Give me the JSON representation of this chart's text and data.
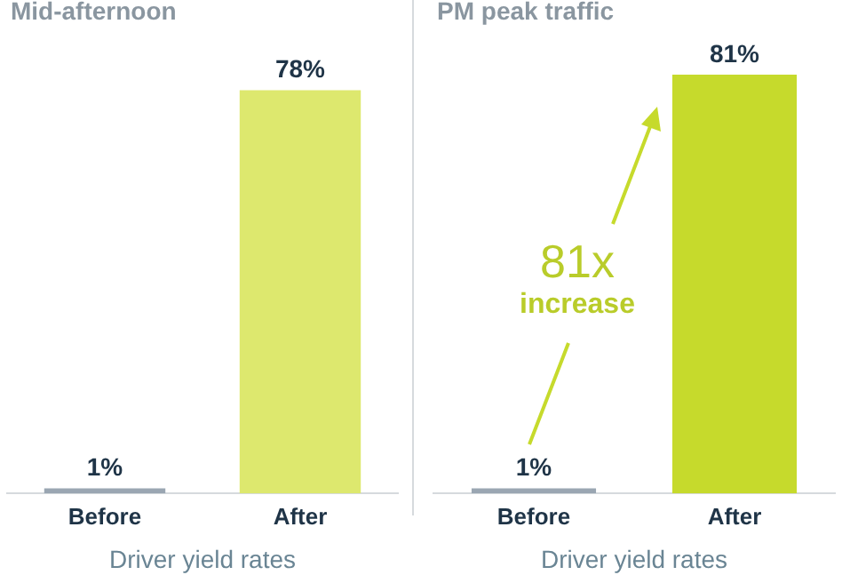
{
  "chart_data": [
    {
      "type": "bar",
      "title": "Mid-afternoon",
      "xlabel": "Driver yield rates",
      "categories": [
        "Before",
        "After"
      ],
      "values": [
        1,
        78
      ],
      "colors": [
        "#9aa6b2",
        "#dde86e"
      ],
      "value_labels": [
        "1%",
        "78%"
      ],
      "grid": false,
      "legend": false
    },
    {
      "type": "bar",
      "title": "PM peak traffic",
      "xlabel": "Driver yield rates",
      "categories": [
        "Before",
        "After"
      ],
      "values": [
        1,
        81
      ],
      "colors": [
        "#9aa6b2",
        "#c6da2c"
      ],
      "value_labels": [
        "1%",
        "81%"
      ],
      "grid": false,
      "legend": false,
      "annotations": [
        "81x",
        "increase"
      ]
    }
  ]
}
